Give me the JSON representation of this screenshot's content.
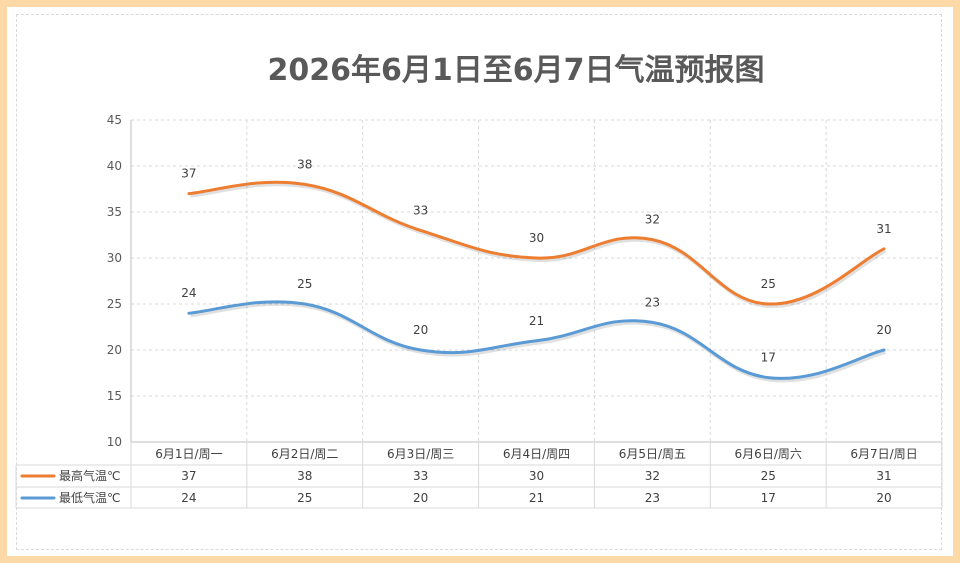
{
  "chart_data": {
    "type": "line",
    "title": "2026年6月1日至6月7日气温预报图",
    "categories": [
      "6月1日/周一",
      "6月2日/周二",
      "6月3日/周三",
      "6月4日/周四",
      "6月5日/周五",
      "6月6日/周六",
      "6月7日/周日"
    ],
    "series": [
      {
        "name": "最高气温℃",
        "values": [
          37,
          38,
          33,
          30,
          32,
          25,
          31
        ],
        "color": "#ed7d31"
      },
      {
        "name": "最低气温℃",
        "values": [
          24,
          25,
          20,
          21,
          23,
          17,
          20
        ],
        "color": "#5b9bd5"
      }
    ],
    "ylim": [
      10,
      45
    ],
    "yticks": [
      "10",
      "15",
      "20",
      "25",
      "30",
      "35",
      "40",
      "45"
    ],
    "smooth": true,
    "data_table": true,
    "grid": "dashed"
  }
}
